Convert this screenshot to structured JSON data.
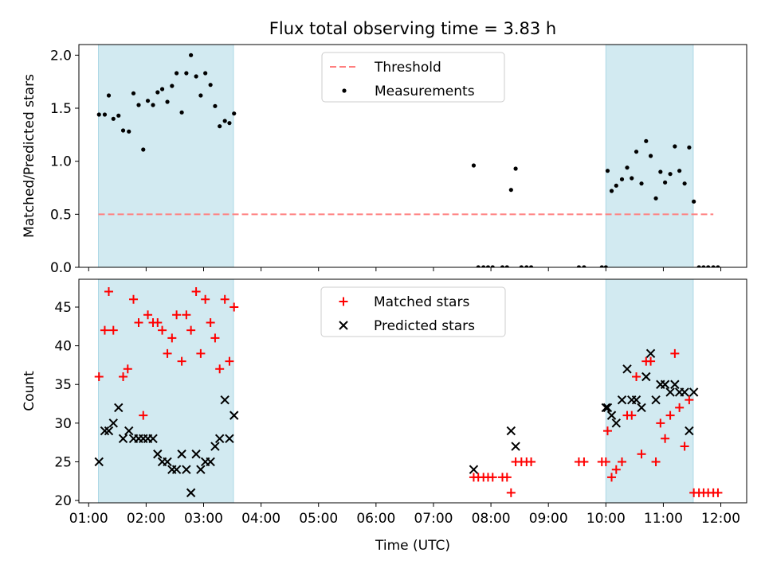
{
  "title": "Flux total observing time = 3.83 h",
  "chart_data": [
    {
      "type": "scatter",
      "panel": "top",
      "ylabel": "Matched/Predicted stars",
      "xlabel": "",
      "xlim": [
        0.83,
        12.45
      ],
      "ylim": [
        0,
        2.1
      ],
      "yticks": [
        0,
        0.5,
        1.0,
        1.5,
        2.0
      ],
      "ytick_labels": [
        "0.0",
        "0.5",
        "1.0",
        "1.5",
        "2.0"
      ],
      "shaded_intervals": [
        [
          1.17,
          3.52
        ],
        [
          10.0,
          11.52
        ]
      ],
      "shade_color": "#add8e6",
      "grid": false,
      "legend_position": "top-center",
      "series": [
        {
          "name": "Threshold",
          "kind": "dashed-line",
          "color": "#ff7f7f",
          "x": [
            1.17,
            11.87
          ],
          "y": [
            0.5,
            0.5
          ]
        },
        {
          "name": "Measurements",
          "kind": "dot",
          "color": "#000000",
          "x": [
            1.18,
            1.28,
            1.35,
            1.43,
            1.52,
            1.6,
            1.7,
            1.78,
            1.87,
            1.95,
            2.03,
            2.12,
            2.2,
            2.28,
            2.37,
            2.45,
            2.53,
            2.62,
            2.7,
            2.78,
            2.87,
            2.95,
            3.03,
            3.12,
            3.2,
            3.28,
            3.37,
            3.45,
            3.53,
            7.7,
            7.78,
            7.87,
            7.95,
            8.03,
            8.2,
            8.28,
            8.35,
            8.43,
            8.53,
            8.62,
            8.7,
            9.53,
            9.62,
            9.93,
            10.0,
            10.03,
            10.1,
            10.18,
            10.28,
            10.37,
            10.45,
            10.53,
            10.62,
            10.7,
            10.78,
            10.87,
            10.95,
            11.03,
            11.12,
            11.2,
            11.28,
            11.37,
            11.45,
            11.53,
            11.62,
            11.7,
            11.78,
            11.87,
            11.95
          ],
          "y": [
            1.44,
            1.44,
            1.62,
            1.4,
            1.43,
            1.29,
            1.28,
            1.64,
            1.53,
            1.11,
            1.57,
            1.53,
            1.65,
            1.68,
            1.56,
            1.71,
            1.83,
            1.46,
            1.83,
            2.0,
            1.8,
            1.62,
            1.83,
            1.72,
            1.52,
            1.33,
            1.38,
            1.36,
            1.45,
            0.96,
            0.0,
            0.0,
            0.0,
            0.0,
            0.0,
            0.0,
            0.73,
            0.93,
            0.0,
            0.0,
            0.0,
            0.0,
            0.0,
            0.0,
            0.0,
            0.91,
            0.72,
            0.77,
            0.83,
            0.94,
            0.84,
            1.09,
            0.79,
            1.19,
            1.05,
            0.65,
            0.9,
            0.8,
            0.88,
            1.14,
            0.91,
            0.79,
            1.13,
            0.62,
            0.0,
            0.0,
            0.0,
            0.0,
            0.0
          ]
        }
      ]
    },
    {
      "type": "scatter",
      "panel": "bottom",
      "ylabel": "Count",
      "xlabel": "Time (UTC)",
      "xlim": [
        0.83,
        12.45
      ],
      "ylim": [
        19.7,
        48.6
      ],
      "yticks": [
        20,
        25,
        30,
        35,
        40,
        45
      ],
      "ytick_labels": [
        "20",
        "25",
        "30",
        "35",
        "40",
        "45"
      ],
      "xticks": [
        1,
        2,
        3,
        4,
        5,
        6,
        7,
        8,
        9,
        10,
        11,
        12
      ],
      "xtick_labels": [
        "01:00",
        "02:00",
        "03:00",
        "04:00",
        "05:00",
        "06:00",
        "07:00",
        "08:00",
        "09:00",
        "10:00",
        "11:00",
        "12:00"
      ],
      "shaded_intervals": [
        [
          1.17,
          3.52
        ],
        [
          10.0,
          11.52
        ]
      ],
      "shade_color": "#add8e6",
      "grid": false,
      "legend_position": "top-center",
      "series": [
        {
          "name": "Matched stars",
          "kind": "plus",
          "color": "#ff0000",
          "x": [
            1.18,
            1.28,
            1.35,
            1.43,
            1.6,
            1.68,
            1.78,
            1.87,
            1.95,
            2.03,
            2.12,
            2.2,
            2.28,
            2.37,
            2.45,
            2.53,
            2.62,
            2.7,
            2.78,
            2.87,
            2.95,
            3.03,
            3.12,
            3.2,
            3.28,
            3.37,
            3.45,
            3.53,
            7.7,
            7.78,
            7.87,
            7.95,
            8.03,
            8.2,
            8.28,
            8.35,
            8.43,
            8.53,
            8.62,
            8.7,
            9.53,
            9.62,
            9.93,
            10.0,
            10.03,
            10.1,
            10.18,
            10.28,
            10.37,
            10.45,
            10.53,
            10.62,
            10.7,
            10.78,
            10.87,
            10.95,
            11.03,
            11.12,
            11.2,
            11.28,
            11.37,
            11.45,
            11.53,
            11.62,
            11.7,
            11.78,
            11.87,
            11.95
          ],
          "y": [
            36,
            42,
            47,
            42,
            36,
            37,
            46,
            43,
            31,
            44,
            43,
            43,
            42,
            39,
            41,
            44,
            38,
            44,
            42,
            47,
            39,
            46,
            43,
            41,
            37,
            46,
            38,
            45,
            23,
            23,
            23,
            23,
            23,
            23,
            23,
            21,
            25,
            25,
            25,
            25,
            25,
            25,
            25,
            25,
            29,
            23,
            24,
            25,
            31,
            31,
            36,
            26,
            38,
            38,
            25,
            30,
            28,
            31,
            39,
            32,
            27,
            33,
            21,
            21,
            21,
            21,
            21,
            21
          ]
        },
        {
          "name": "Predicted stars",
          "kind": "x",
          "color": "#000000",
          "x": [
            1.18,
            1.28,
            1.35,
            1.43,
            1.52,
            1.6,
            1.7,
            1.78,
            1.87,
            1.95,
            2.03,
            2.12,
            2.2,
            2.28,
            2.37,
            2.45,
            2.53,
            2.62,
            2.7,
            2.78,
            2.87,
            2.95,
            3.03,
            3.12,
            3.2,
            3.28,
            3.37,
            3.45,
            3.53,
            7.7,
            8.35,
            8.43,
            10.0,
            10.03,
            10.1,
            10.18,
            10.28,
            10.37,
            10.45,
            10.53,
            10.62,
            10.7,
            10.78,
            10.87,
            10.95,
            11.03,
            11.12,
            11.2,
            11.28,
            11.37,
            11.45,
            11.53
          ],
          "y": [
            25,
            29,
            29,
            30,
            32,
            28,
            29,
            28,
            28,
            28,
            28,
            28,
            26,
            25,
            25,
            24,
            24,
            26,
            24,
            21,
            26,
            24,
            25,
            25,
            27,
            28,
            33,
            28,
            31,
            24,
            29,
            27,
            32,
            32,
            31,
            30,
            33,
            37,
            33,
            33,
            32,
            36,
            39,
            33,
            35,
            35,
            34,
            35,
            34,
            34,
            29,
            34
          ]
        }
      ]
    }
  ]
}
